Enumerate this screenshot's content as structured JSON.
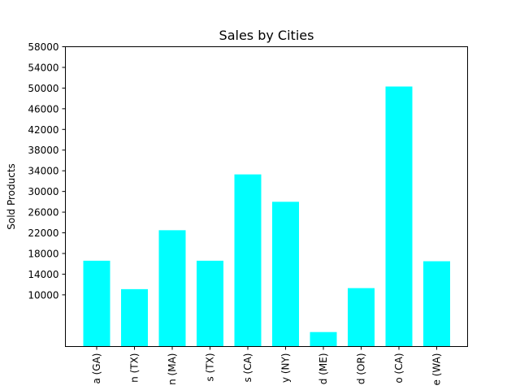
{
  "chart_data": {
    "type": "bar",
    "title": "Sales by Cities",
    "xlabel": "",
    "ylabel": "Sold Products",
    "categories": [
      "Atlanta (GA)",
      "Austin (TX)",
      "Boston (MA)",
      "Dallas (TX)",
      "Los Angeles (CA)",
      "New York City (NY)",
      "Portland (ME)",
      "Portland (OR)",
      "San Francisco (CA)",
      "Seattle (WA)"
    ],
    "visible_category_fragments": [
      "a (GA)",
      "n (TX)",
      "n (MA)",
      "s (TX)",
      "s (CA)",
      "y (NY)",
      "d (ME)",
      "d (OR)",
      "o (CA)",
      "e (WA)"
    ],
    "values": [
      16600,
      11100,
      22500,
      16600,
      33300,
      28000,
      2800,
      11300,
      50300,
      16500
    ],
    "ylim": [
      0,
      58000
    ],
    "yticks": [
      10000,
      14000,
      18000,
      22000,
      26000,
      30000,
      34000,
      38000,
      42000,
      46000,
      50000,
      54000,
      58000
    ],
    "bar_color": "#00ffff",
    "grid": false,
    "legend": "none"
  }
}
